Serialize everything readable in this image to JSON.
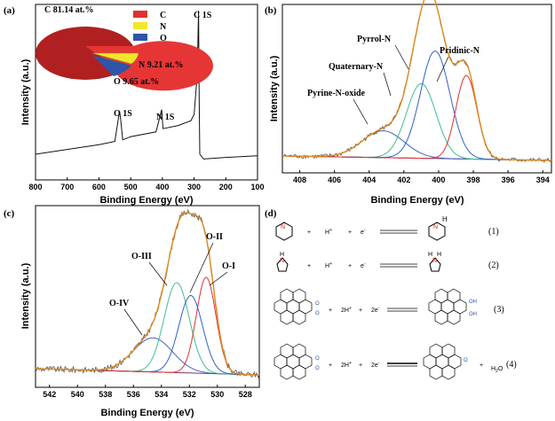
{
  "panel_labels": {
    "a": "(a)",
    "b": "(b)",
    "c": "(c)",
    "d": "(d)"
  },
  "colors": {
    "experimental": "#555555",
    "envelope": "#e08a1e",
    "background": "#8a3060",
    "pie_c": "#e03030",
    "pie_n": "#f3e52a",
    "pie_o": "#2d55a8"
  },
  "chart_data": [
    {
      "panel": "(a)",
      "type": "line",
      "xlabel": "Binding Energy (eV)",
      "ylabel": "Intensity (a.u.)",
      "xlim": [
        800,
        100
      ],
      "xticks": [
        800,
        700,
        600,
        500,
        400,
        300,
        200,
        100
      ],
      "series": [
        {
          "x": [
            800,
            700,
            600,
            550,
            535,
            532,
            525,
            500,
            420,
            402,
            398,
            350,
            310,
            300,
            290,
            286,
            284,
            282,
            270,
            200,
            100
          ],
          "y": [
            0.05,
            0.08,
            0.11,
            0.13,
            0.32,
            0.28,
            0.14,
            0.16,
            0.19,
            0.33,
            0.21,
            0.23,
            0.26,
            0.3,
            0.55,
            0.95,
            0.4,
            0.05,
            0.02,
            0.03,
            0.04
          ]
        }
      ],
      "annotations": [
        {
          "text": "O 1S",
          "x": 532
        },
        {
          "text": "N 1S",
          "x": 400
        },
        {
          "text": "C 1S",
          "x": 284
        }
      ],
      "inset": {
        "type": "pie",
        "slices": [
          {
            "label": "C",
            "value": 81.14,
            "text": "C 81.14 at.%"
          },
          {
            "label": "N",
            "value": 9.21,
            "text": "N 9.21 at.%"
          },
          {
            "label": "O",
            "value": 9.65,
            "text": "O 9.65 at.%"
          }
        ]
      }
    },
    {
      "panel": "(b)",
      "type": "line",
      "xlabel": "Binding Energy (eV)",
      "ylabel": "Intensity (a.u.)",
      "xlim": [
        409,
        393.5
      ],
      "xticks": [
        408,
        406,
        404,
        402,
        400,
        398,
        396,
        394
      ],
      "peaks": [
        {
          "name": "Pyrine-N-oxide",
          "center": 403.2,
          "height": 0.18,
          "sigma": 1.2,
          "color": "#3d63c8"
        },
        {
          "name": "Quaternary-N",
          "center": 401.0,
          "height": 0.5,
          "sigma": 0.85,
          "color": "#3cc08a"
        },
        {
          "name": "Pyrrol-N",
          "center": 400.2,
          "height": 0.72,
          "sigma": 0.85,
          "color": "#3060c8"
        },
        {
          "name": "Pridinic-N",
          "center": 398.4,
          "height": 0.56,
          "sigma": 0.6,
          "color": "#e03030"
        }
      ]
    },
    {
      "panel": "(c)",
      "type": "line",
      "xlabel": "Binding Energy (eV)",
      "ylabel": "Intensity (a.u.)",
      "xlim": [
        543,
        527
      ],
      "xticks": [
        542,
        540,
        538,
        536,
        534,
        532,
        530,
        528
      ],
      "peaks": [
        {
          "name": "O-IV",
          "center": 534.6,
          "height": 0.22,
          "sigma": 1.4,
          "color": "#3d63c8"
        },
        {
          "name": "O-III",
          "center": 532.9,
          "height": 0.58,
          "sigma": 0.9,
          "color": "#3cc08a"
        },
        {
          "name": "O-II",
          "center": 531.9,
          "height": 0.5,
          "sigma": 0.85,
          "color": "#3060c8"
        },
        {
          "name": "O-I",
          "center": 530.8,
          "height": 0.62,
          "sigma": 0.7,
          "color": "#e03030"
        }
      ]
    }
  ],
  "reactions": [
    {
      "plus1": "+",
      "h": "H",
      "hsup": "+",
      "plus2": "+",
      "e": "e",
      "esup": "-",
      "num": "(1)"
    },
    {
      "plus1": "+",
      "h": "H",
      "hsup": "+",
      "plus2": "+",
      "e": "e",
      "esup": "-",
      "num": "(2)"
    },
    {
      "plus1": "+",
      "h": "2H",
      "hsup": "+",
      "plus2": "+",
      "e": "2e",
      "esup": "-",
      "num": "(3)"
    },
    {
      "plus1": "+",
      "h": "2H",
      "hsup": "+",
      "plus2": "+",
      "e": "2e",
      "esup": "-",
      "num": "(4)",
      "extra": "+",
      "h2o": "H",
      "h2o_sub": "2",
      "h2o_o": "O"
    }
  ],
  "struct_labels": {
    "H": "H",
    "N": "N",
    "O": "O",
    "OH": "OH"
  }
}
